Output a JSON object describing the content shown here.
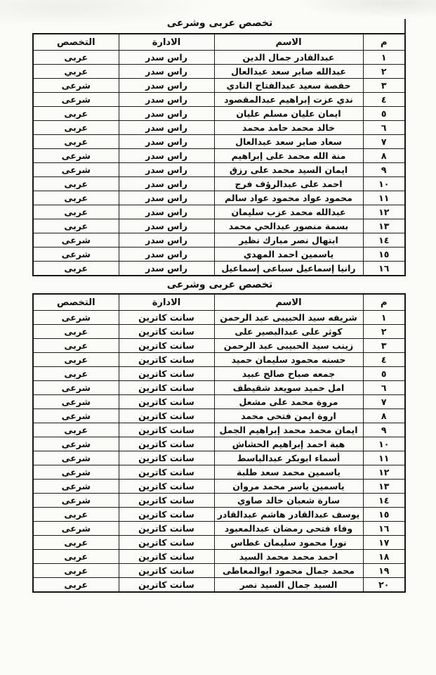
{
  "document": {
    "tables": [
      {
        "title": "تخصص عربى وشرعى",
        "headers": {
          "num": "م",
          "name": "الاسم",
          "admin": "الادارة",
          "spec": "التخصص"
        },
        "rows": [
          {
            "num": "١",
            "name": "عبدالقادر جمال الدين",
            "admin": "راس سدر",
            "spec": "عربى"
          },
          {
            "num": "٢",
            "name": "عبدالله صابر سعد عبدالعال",
            "admin": "راس سدر",
            "spec": "عربي"
          },
          {
            "num": "٣",
            "name": "حفصة سعيد عبدالفتاح النادي",
            "admin": "راس سدر",
            "spec": "شرعى"
          },
          {
            "num": "٤",
            "name": "ندي عزت إبراهيم عبدالمقصود",
            "admin": "راس سدر",
            "spec": "شرعى"
          },
          {
            "num": "٥",
            "name": "ايمان عليان مسلم عليان",
            "admin": "راس سدر",
            "spec": "عربى"
          },
          {
            "num": "٦",
            "name": "خالد محمد حامد محمد",
            "admin": "راس سدر",
            "spec": "عربى"
          },
          {
            "num": "٧",
            "name": "سعاد صابر سعد عبدالعال",
            "admin": "راس سدر",
            "spec": "عربى"
          },
          {
            "num": "٨",
            "name": "منة الله محمد على إبراهيم",
            "admin": "راس سدر",
            "spec": "شرعى"
          },
          {
            "num": "٩",
            "name": "ايمان السيد محمد على رزق",
            "admin": "راس سدر",
            "spec": "شرعى"
          },
          {
            "num": "١٠",
            "name": "احمد على عبدالرؤف فرج",
            "admin": "راس سدر",
            "spec": "عربى"
          },
          {
            "num": "١١",
            "name": "محمود عواد محمود عواد سالم",
            "admin": "راس سدر",
            "spec": "عربى"
          },
          {
            "num": "١٢",
            "name": "عبدالله محمد عزب سليمان",
            "admin": "راس سدر",
            "spec": "عربى"
          },
          {
            "num": "١٣",
            "name": "بسمة منصور عبدالحي محمد",
            "admin": "راس سدر",
            "spec": "عربى"
          },
          {
            "num": "١٤",
            "name": "ابتهال نصر مبارك نظير",
            "admin": "راس سدر",
            "spec": "شرعى"
          },
          {
            "num": "١٥",
            "name": "ياسمين احمد المهدي",
            "admin": "راس سدر",
            "spec": "شرعى"
          },
          {
            "num": "١٦",
            "name": "رانيا إسماعيل سباعى إسماعيل",
            "admin": "راس سدر",
            "spec": "عربى"
          }
        ]
      },
      {
        "title": "تخصص عربى وشرعى",
        "headers": {
          "num": "م",
          "name": "الاسم",
          "admin": "الادارة",
          "spec": "التخصص"
        },
        "rows": [
          {
            "num": "١",
            "name": "شريفه سيد الحبيبى عبد الرحمن",
            "admin": "سانت كاترين",
            "spec": "شرعى"
          },
          {
            "num": "٢",
            "name": "كوثر على عبدالبصير على",
            "admin": "سانت كاترين",
            "spec": "عربى"
          },
          {
            "num": "٣",
            "name": "زينب سيد الحبيبى عبد الرحمن",
            "admin": "سانت كاترين",
            "spec": "عربى"
          },
          {
            "num": "٤",
            "name": "حسنه محمود سليمان حميد",
            "admin": "سانت كاترين",
            "spec": "عربى"
          },
          {
            "num": "٥",
            "name": "جمعه صباح صالح عبيد",
            "admin": "سانت كاترين",
            "spec": "عربى"
          },
          {
            "num": "٦",
            "name": "امل حميد سويعد شقيطف",
            "admin": "سانت كاترين",
            "spec": "شرعى"
          },
          {
            "num": "٧",
            "name": "مروة محمد على مشعل",
            "admin": "سانت كاترين",
            "spec": "شرعى"
          },
          {
            "num": "٨",
            "name": "اروة ايمن فتحى محمد",
            "admin": "سانت كاترين",
            "spec": "شرعى"
          },
          {
            "num": "٩",
            "name": "ايمان محمد محمد إبراهيم الجمل",
            "admin": "سانت كاترين",
            "spec": "عربى"
          },
          {
            "num": "١٠",
            "name": "هبة احمد إبراهيم الحشاش",
            "admin": "سانت كاترين",
            "spec": "شرعى"
          },
          {
            "num": "١١",
            "name": "أسماء ابوبكر عبدالباسط",
            "admin": "سانت كاترين",
            "spec": "شرعى"
          },
          {
            "num": "١٢",
            "name": "ياسمين محمد سعد طلبة",
            "admin": "سانت كاترين",
            "spec": "شرعى"
          },
          {
            "num": "١٣",
            "name": "ياسمين ياسر محمد مروان",
            "admin": "سانت كاترين",
            "spec": "شرعى"
          },
          {
            "num": "١٤",
            "name": "سارة شعبان خالد صاوي",
            "admin": "سانت كاترين",
            "spec": "شرعى"
          },
          {
            "num": "١٥",
            "name": "يوسف عبدالقادر هاشم عبدالقادر",
            "admin": "سانت كاترين",
            "spec": "عربى"
          },
          {
            "num": "١٦",
            "name": "وفاء فتحى رمضان عبدالمعبود",
            "admin": "سانت كاترين",
            "spec": "شرعى"
          },
          {
            "num": "١٧",
            "name": "نورا محمود سليمان غطاس",
            "admin": "سانت كاترين",
            "spec": "عربى"
          },
          {
            "num": "١٨",
            "name": "احمد محمد محمد السيد",
            "admin": "سانت كاترين",
            "spec": "عربى"
          },
          {
            "num": "١٩",
            "name": "محمد جمال محمود ابوالمعاطى",
            "admin": "سانت كاترين",
            "spec": "عربى"
          },
          {
            "num": "٢٠",
            "name": "السيد جمال السيد نصر",
            "admin": "سانت كاترين",
            "spec": "عربى"
          }
        ]
      }
    ],
    "ink_color": "#0f0f0f",
    "border_color": "#1c1c1c",
    "paper_color": "#fbfbf8"
  }
}
